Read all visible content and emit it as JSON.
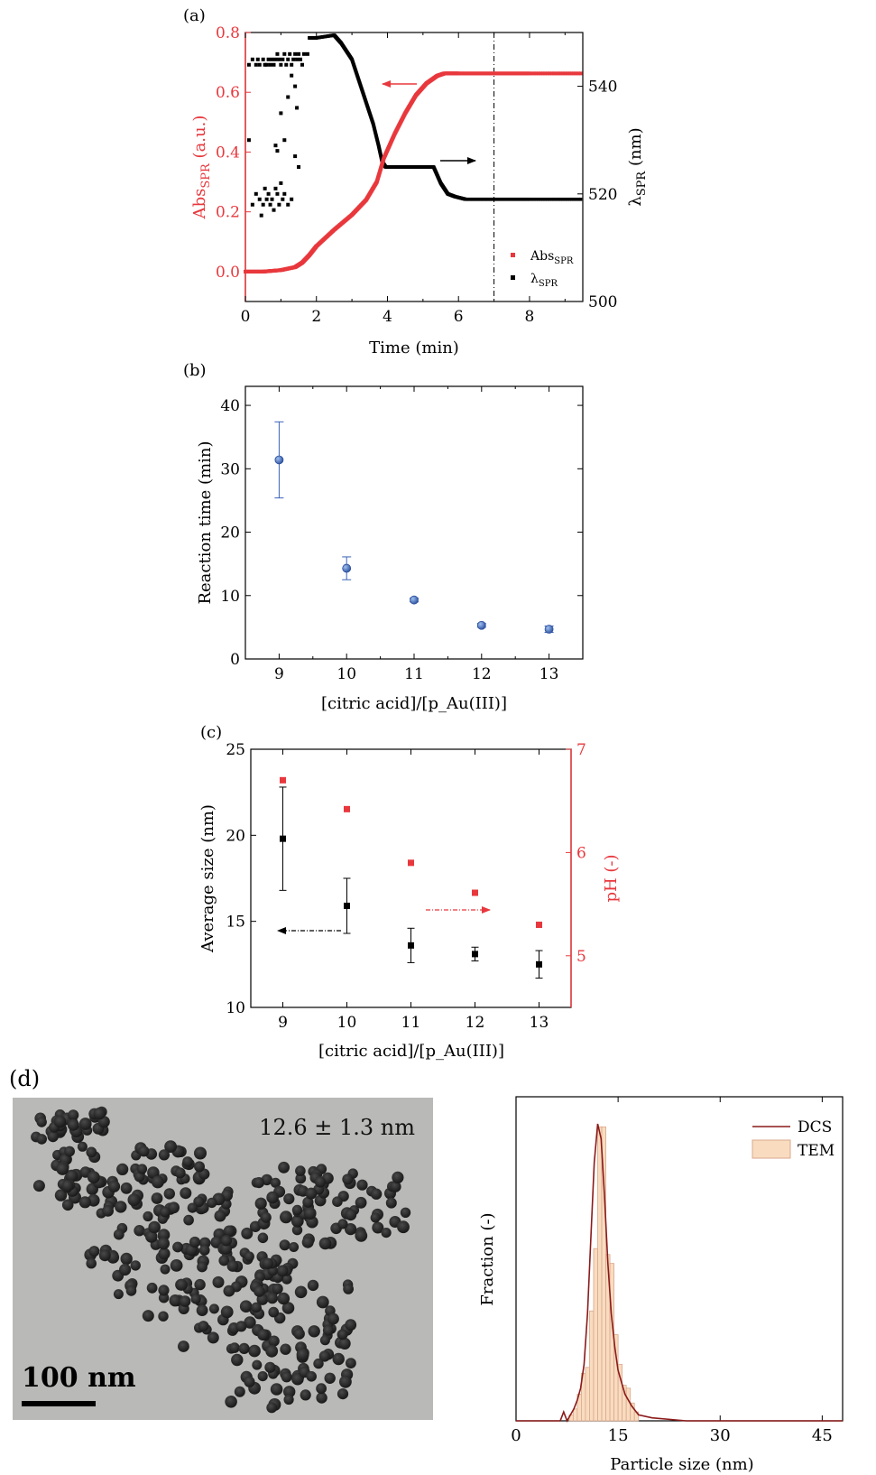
{
  "panels": {
    "a": {
      "label": "(a)"
    },
    "b": {
      "label": "(b)"
    },
    "c": {
      "label": "(c)"
    },
    "d": {
      "label": "(d)"
    }
  },
  "colors": {
    "red": "#e8383d",
    "black": "#000000",
    "blue": "#3a63b8",
    "hist_fill": "#f9dcc0",
    "hist_edge": "#d9a88c",
    "dcs_line": "#8b1a1a"
  },
  "chart_data": [
    {
      "id": "a",
      "type": "scatter",
      "xlabel": "Time (min)",
      "ylabel_left": {
        "main": "Abs",
        "sub": "SPR",
        "tail": " (a.u.)"
      },
      "ylabel_right": {
        "main": "λ",
        "sub": "SPR",
        "tail": " (nm)"
      },
      "xlim": [
        0,
        9.5
      ],
      "ylim_left": [
        -0.1,
        0.8
      ],
      "ylim_right": [
        500,
        550
      ],
      "xticks": [
        0,
        2,
        4,
        6,
        8
      ],
      "yticks_left": [
        0.0,
        0.2,
        0.4,
        0.6,
        0.8
      ],
      "yticks_right": [
        500,
        520,
        540
      ],
      "legend_position": "bottom-right",
      "vline_x": 7.0,
      "series": [
        {
          "name": {
            "main": "Abs",
            "sub": "SPR"
          },
          "axis": "left",
          "color": "red",
          "x": [
            0,
            0.5,
            1.0,
            1.4,
            1.6,
            1.8,
            2.0,
            2.5,
            3.0,
            3.4,
            3.7,
            3.9,
            4.2,
            4.5,
            4.8,
            5.1,
            5.4,
            5.6,
            6.0,
            7.0,
            8.0,
            9.5
          ],
          "y": [
            0.0,
            0.0,
            0.005,
            0.015,
            0.03,
            0.055,
            0.085,
            0.14,
            0.19,
            0.24,
            0.3,
            0.38,
            0.46,
            0.53,
            0.59,
            0.63,
            0.655,
            0.663,
            0.663,
            0.663,
            0.663,
            0.663
          ]
        },
        {
          "name": {
            "main": "λ",
            "sub": "SPR"
          },
          "axis": "right",
          "color": "black",
          "x": [
            0.1,
            0.2,
            0.3,
            0.35,
            0.4,
            0.5,
            0.55,
            0.6,
            0.65,
            0.7,
            0.75,
            0.8,
            0.85,
            0.9,
            0.95,
            1.0,
            1.05,
            1.1,
            1.15,
            1.2,
            1.25,
            1.3,
            1.35,
            1.4,
            1.45,
            1.5,
            1.55,
            1.6,
            1.65,
            1.75,
            0.3,
            0.4,
            0.5,
            0.55,
            0.6,
            0.65,
            0.7,
            0.75,
            0.8,
            0.85,
            0.9,
            0.95,
            1.0,
            1.05,
            1.1,
            1.2,
            1.3,
            0.1,
            0.2,
            0.45,
            0.85,
            0.9,
            1.0,
            1.1,
            1.2,
            1.3,
            1.4,
            1.5,
            1.4,
            1.45
          ],
          "y": [
            544,
            545,
            544,
            545,
            544,
            545,
            544,
            544,
            545,
            544,
            545,
            544,
            545,
            546,
            545,
            544,
            545,
            546,
            544,
            545,
            546,
            544,
            545,
            546,
            545,
            546,
            545,
            544,
            546,
            546,
            520,
            519,
            518,
            521,
            519,
            520,
            518,
            519,
            517,
            521,
            520,
            518,
            522,
            519,
            520,
            518,
            519,
            530,
            518,
            516,
            529,
            528,
            535,
            530,
            538,
            542,
            527,
            525,
            540,
            536
          ]
        },
        {
          "name": {
            "main": "λ",
            "sub": "SPR"
          },
          "axis": "right",
          "color": "black",
          "line": true,
          "x": [
            1.8,
            2.0,
            2.5,
            2.7,
            3.0,
            3.2,
            3.4,
            3.6,
            3.75,
            3.85,
            3.95,
            4.2,
            4.6,
            5.0,
            5.3,
            5.5,
            5.7,
            5.9,
            6.2,
            7.0,
            8.0,
            9.5
          ],
          "y": [
            549,
            549,
            549.5,
            548,
            545,
            541,
            537,
            533,
            529,
            526,
            525,
            525,
            525,
            525,
            525,
            522,
            520,
            519.5,
            519,
            519,
            519,
            519
          ]
        }
      ]
    },
    {
      "id": "b",
      "type": "scatter",
      "xlabel": "[citric acid]/[p_Au(III)]",
      "ylabel": "Reaction time (min)",
      "xlim": [
        8.5,
        13.5
      ],
      "ylim": [
        0,
        43
      ],
      "xticks": [
        9,
        10,
        11,
        12,
        13
      ],
      "yticks": [
        0,
        10,
        20,
        30,
        40
      ],
      "x": [
        9,
        10,
        11,
        12,
        13
      ],
      "y": [
        31.4,
        14.3,
        9.3,
        5.3,
        4.7
      ],
      "yerr": [
        6.0,
        1.8,
        0.3,
        0.3,
        0.5
      ]
    },
    {
      "id": "c",
      "type": "scatter",
      "xlabel": "[citric acid]/[p_Au(III)]",
      "ylabel_left": "Average size (nm)",
      "ylabel_right": "pH (-)",
      "xlim": [
        8.5,
        13.5
      ],
      "ylim_left": [
        10,
        25
      ],
      "ylim_right": [
        4.5,
        7.0
      ],
      "xticks": [
        9,
        10,
        11,
        12,
        13
      ],
      "yticks_left": [
        10,
        15,
        20,
        25
      ],
      "yticks_right": [
        5,
        6,
        7
      ],
      "series": [
        {
          "axis": "left",
          "color": "black",
          "x": [
            9,
            10,
            11,
            12,
            13
          ],
          "y": [
            19.8,
            15.9,
            13.6,
            13.1,
            12.5
          ],
          "yerr": [
            3.0,
            1.6,
            1.0,
            0.4,
            0.8
          ]
        },
        {
          "axis": "right",
          "color": "red",
          "x": [
            9,
            10,
            11,
            12,
            13
          ],
          "y": [
            6.7,
            6.42,
            5.9,
            5.61,
            5.3
          ]
        }
      ]
    },
    {
      "id": "d-right",
      "type": "bar",
      "xlabel": "Particle size (nm)",
      "ylabel": "Fraction (-)",
      "xlim": [
        0,
        48
      ],
      "xticks": [
        0,
        15,
        30,
        45
      ],
      "legend_position": "top-right",
      "hist_bin_width": 0.6,
      "hist_x": [
        7.8,
        8.4,
        9.0,
        9.6,
        10.2,
        10.8,
        11.4,
        12.0,
        12.6,
        13.2,
        13.8,
        14.4,
        15.0,
        15.6,
        16.2,
        16.8,
        17.4
      ],
      "hist_y": [
        0.02,
        0.04,
        0.09,
        0.16,
        0.18,
        0.37,
        0.58,
        0.99,
        0.99,
        0.56,
        0.53,
        0.29,
        0.19,
        0.12,
        0.11,
        0.06,
        0.03
      ],
      "series": [
        {
          "name": "DCS",
          "type": "line",
          "x": [
            0,
            6.5,
            7.0,
            7.5,
            8.0,
            8.5,
            9.0,
            9.5,
            10.0,
            10.5,
            11.0,
            11.5,
            12.0,
            12.5,
            13.0,
            13.5,
            14.0,
            14.5,
            15.0,
            16.0,
            17.0,
            18.0,
            20.0,
            25.0,
            48.0
          ],
          "y": [
            0.0,
            0.0,
            0.03,
            0.0,
            0.02,
            0.04,
            0.07,
            0.11,
            0.19,
            0.36,
            0.62,
            0.87,
            1.0,
            0.95,
            0.76,
            0.53,
            0.36,
            0.25,
            0.17,
            0.09,
            0.05,
            0.02,
            0.01,
            0.0,
            0.0
          ]
        },
        {
          "name": "TEM",
          "type": "bar"
        }
      ]
    }
  ],
  "tem_image": {
    "annotation": "12.6 ± 1.3 nm",
    "scalebar": "100 nm"
  }
}
